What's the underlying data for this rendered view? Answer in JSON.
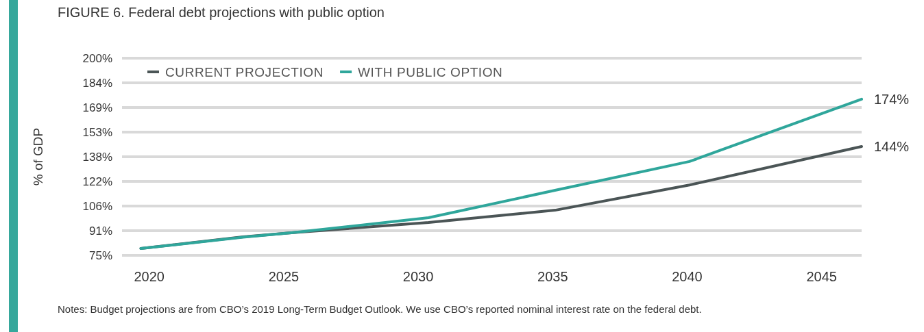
{
  "chart_data": {
    "type": "line",
    "title": "FIGURE 6. Federal debt projections with public option",
    "ylabel": "% of GDP",
    "xlim": [
      2019,
      2046.5
    ],
    "xticks": [
      2020,
      2025,
      2030,
      2035,
      2040,
      2045
    ],
    "ylim": [
      75,
      200
    ],
    "yticks": [
      {
        "value": 75,
        "label": "75%"
      },
      {
        "value": 90.625,
        "label": "91%"
      },
      {
        "value": 106.25,
        "label": "106%"
      },
      {
        "value": 121.875,
        "label": "122%"
      },
      {
        "value": 137.5,
        "label": "138%"
      },
      {
        "value": 153.125,
        "label": "153%"
      },
      {
        "value": 168.75,
        "label": "169%"
      },
      {
        "value": 184.375,
        "label": "184%"
      },
      {
        "value": 200,
        "label": "200%"
      }
    ],
    "grid": "y",
    "legend": "top left",
    "line_style": "solid",
    "marker": "none",
    "x": [
      2019.7,
      2023.5,
      2025.3,
      2030.4,
      2035.1,
      2040.1,
      2046.5
    ],
    "series": [
      {
        "name": "CURRENT PROJECTION",
        "color": "#4b5556",
        "values": [
          79.3,
          86.7,
          89.3,
          95.8,
          103.6,
          119.6,
          144
        ],
        "value_labels": [
          null,
          null,
          null,
          null,
          null,
          null,
          "144%"
        ]
      },
      {
        "name": "WITH PUBLIC OPTION",
        "color": "#2fa69b",
        "values": [
          79.3,
          86.5,
          89.3,
          98.9,
          116.2,
          134.5,
          174
        ],
        "value_labels": [
          null,
          null,
          null,
          null,
          null,
          null,
          "174%"
        ]
      }
    ],
    "annotations": [
      "Notes: Budget projections are from CBO’s 2019 Long-Term Budget Outlook. We use CBO’s reported nominal interest rate on the federal debt."
    ]
  }
}
